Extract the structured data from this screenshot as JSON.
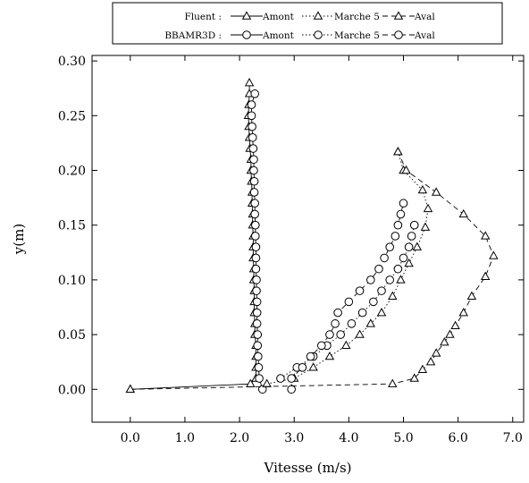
{
  "chart_data": {
    "type": "line",
    "xlabel": "Vitesse (m/s)",
    "ylabel": "y(m)",
    "xlim": [
      -0.7,
      7.2
    ],
    "ylim": [
      -0.03,
      0.305
    ],
    "xticks": [
      "0.0",
      "1.0",
      "2.0",
      "3.0",
      "4.0",
      "5.0",
      "6.0",
      "7.0"
    ],
    "yticks": [
      "0.00",
      "0.05",
      "0.10",
      "0.15",
      "0.20",
      "0.25",
      "0.30"
    ],
    "xtick_values": [
      0,
      1,
      2,
      3,
      4,
      5,
      6,
      7
    ],
    "ytick_values": [
      0,
      0.05,
      0.1,
      0.15,
      0.2,
      0.25,
      0.3
    ],
    "grid": false,
    "legend_position": "top",
    "legend": {
      "rows": [
        {
          "group": "Fluent :",
          "marker": "triangle",
          "entries": [
            {
              "label": "Amont",
              "style": "solid"
            },
            {
              "label": "Marche 5",
              "style": "dotted"
            },
            {
              "label": "Aval",
              "style": "dashed"
            }
          ]
        },
        {
          "group": "BBAMR3D :",
          "marker": "circle",
          "entries": [
            {
              "label": "Amont",
              "style": "solid"
            },
            {
              "label": "Marche 5",
              "style": "dotted"
            },
            {
              "label": "Aval",
              "style": "dashed"
            }
          ]
        }
      ]
    },
    "series": [
      {
        "group": "Fluent",
        "location": "Amont",
        "marker": "triangle",
        "style": "solid",
        "points": [
          [
            0,
            0
          ],
          [
            2.2,
            0.005
          ],
          [
            2.3,
            0.01
          ],
          [
            2.3,
            0.02
          ],
          [
            2.3,
            0.03
          ],
          [
            2.3,
            0.04
          ],
          [
            2.28,
            0.05
          ],
          [
            2.28,
            0.06
          ],
          [
            2.27,
            0.07
          ],
          [
            2.27,
            0.08
          ],
          [
            2.27,
            0.09
          ],
          [
            2.26,
            0.1
          ],
          [
            2.26,
            0.11
          ],
          [
            2.25,
            0.12
          ],
          [
            2.25,
            0.13
          ],
          [
            2.25,
            0.14
          ],
          [
            2.24,
            0.15
          ],
          [
            2.24,
            0.16
          ],
          [
            2.23,
            0.17
          ],
          [
            2.23,
            0.18
          ],
          [
            2.22,
            0.19
          ],
          [
            2.21,
            0.2
          ],
          [
            2.21,
            0.21
          ],
          [
            2.19,
            0.22
          ],
          [
            2.18,
            0.23
          ],
          [
            2.17,
            0.24
          ],
          [
            2.16,
            0.25
          ],
          [
            2.17,
            0.26
          ],
          [
            2.18,
            0.27
          ],
          [
            2.18,
            0.28
          ]
        ]
      },
      {
        "group": "BBAMR3D",
        "location": "Amont",
        "marker": "circle",
        "style": "solid",
        "points": [
          [
            2.42,
            0.0
          ],
          [
            2.36,
            0.01
          ],
          [
            2.35,
            0.02
          ],
          [
            2.34,
            0.03
          ],
          [
            2.33,
            0.04
          ],
          [
            2.33,
            0.05
          ],
          [
            2.32,
            0.06
          ],
          [
            2.32,
            0.07
          ],
          [
            2.32,
            0.08
          ],
          [
            2.31,
            0.09
          ],
          [
            2.31,
            0.1
          ],
          [
            2.3,
            0.11
          ],
          [
            2.3,
            0.12
          ],
          [
            2.3,
            0.13
          ],
          [
            2.29,
            0.14
          ],
          [
            2.29,
            0.15
          ],
          [
            2.28,
            0.16
          ],
          [
            2.28,
            0.17
          ],
          [
            2.27,
            0.18
          ],
          [
            2.27,
            0.19
          ],
          [
            2.26,
            0.2
          ],
          [
            2.26,
            0.21
          ],
          [
            2.25,
            0.22
          ],
          [
            2.24,
            0.23
          ],
          [
            2.23,
            0.24
          ],
          [
            2.22,
            0.25
          ],
          [
            2.22,
            0.26
          ],
          [
            2.28,
            0.27
          ]
        ]
      },
      {
        "group": "Fluent",
        "location": "Marche 5",
        "marker": "triangle",
        "style": "dotted",
        "points": [
          [
            2.5,
            0.005
          ],
          [
            3.0,
            0.01
          ],
          [
            3.35,
            0.02
          ],
          [
            3.65,
            0.03
          ],
          [
            3.95,
            0.04
          ],
          [
            4.2,
            0.05
          ],
          [
            4.4,
            0.06
          ],
          [
            4.6,
            0.07
          ],
          [
            4.8,
            0.085
          ],
          [
            4.95,
            0.1
          ],
          [
            5.1,
            0.115
          ],
          [
            5.25,
            0.13
          ],
          [
            5.4,
            0.148
          ],
          [
            5.45,
            0.165
          ],
          [
            5.35,
            0.182
          ],
          [
            5.0,
            0.2
          ],
          [
            4.9,
            0.217
          ]
        ]
      },
      {
        "group": "BBAMR3D",
        "location": "Marche 5",
        "marker": "circle",
        "style": "dotted",
        "points": [
          [
            2.75,
            0.01
          ],
          [
            3.05,
            0.02
          ],
          [
            3.35,
            0.03
          ],
          [
            3.6,
            0.04
          ],
          [
            3.85,
            0.05
          ],
          [
            4.05,
            0.06
          ],
          [
            4.25,
            0.07
          ],
          [
            4.45,
            0.08
          ],
          [
            4.6,
            0.09
          ],
          [
            4.75,
            0.1
          ],
          [
            4.9,
            0.11
          ],
          [
            5.0,
            0.12
          ],
          [
            5.1,
            0.13
          ],
          [
            5.15,
            0.14
          ],
          [
            5.2,
            0.15
          ]
        ]
      },
      {
        "group": "BBAMR3D",
        "location": "Aval",
        "marker": "circle",
        "style": "dashed",
        "points": [
          [
            2.95,
            0.0
          ],
          [
            2.95,
            0.01
          ],
          [
            3.15,
            0.02
          ],
          [
            3.3,
            0.03
          ],
          [
            3.5,
            0.04
          ],
          [
            3.65,
            0.05
          ],
          [
            3.75,
            0.06
          ],
          [
            3.8,
            0.07
          ],
          [
            4.0,
            0.08
          ],
          [
            4.2,
            0.09
          ],
          [
            4.4,
            0.1
          ],
          [
            4.55,
            0.11
          ],
          [
            4.65,
            0.12
          ],
          [
            4.75,
            0.13
          ],
          [
            4.85,
            0.14
          ],
          [
            4.9,
            0.15
          ],
          [
            4.95,
            0.16
          ],
          [
            5.0,
            0.17
          ]
        ]
      },
      {
        "group": "Fluent",
        "location": "Aval",
        "marker": "triangle",
        "style": "dashed",
        "points": [
          [
            0,
            0
          ],
          [
            4.8,
            0.005
          ],
          [
            5.2,
            0.01
          ],
          [
            5.35,
            0.018
          ],
          [
            5.5,
            0.025
          ],
          [
            5.6,
            0.033
          ],
          [
            5.75,
            0.043
          ],
          [
            5.85,
            0.05
          ],
          [
            5.95,
            0.058
          ],
          [
            6.1,
            0.07
          ],
          [
            6.25,
            0.085
          ],
          [
            6.5,
            0.103
          ],
          [
            6.65,
            0.122
          ],
          [
            6.5,
            0.14
          ],
          [
            6.1,
            0.16
          ],
          [
            5.6,
            0.18
          ],
          [
            5.05,
            0.2
          ],
          [
            4.9,
            0.217
          ]
        ]
      }
    ]
  }
}
